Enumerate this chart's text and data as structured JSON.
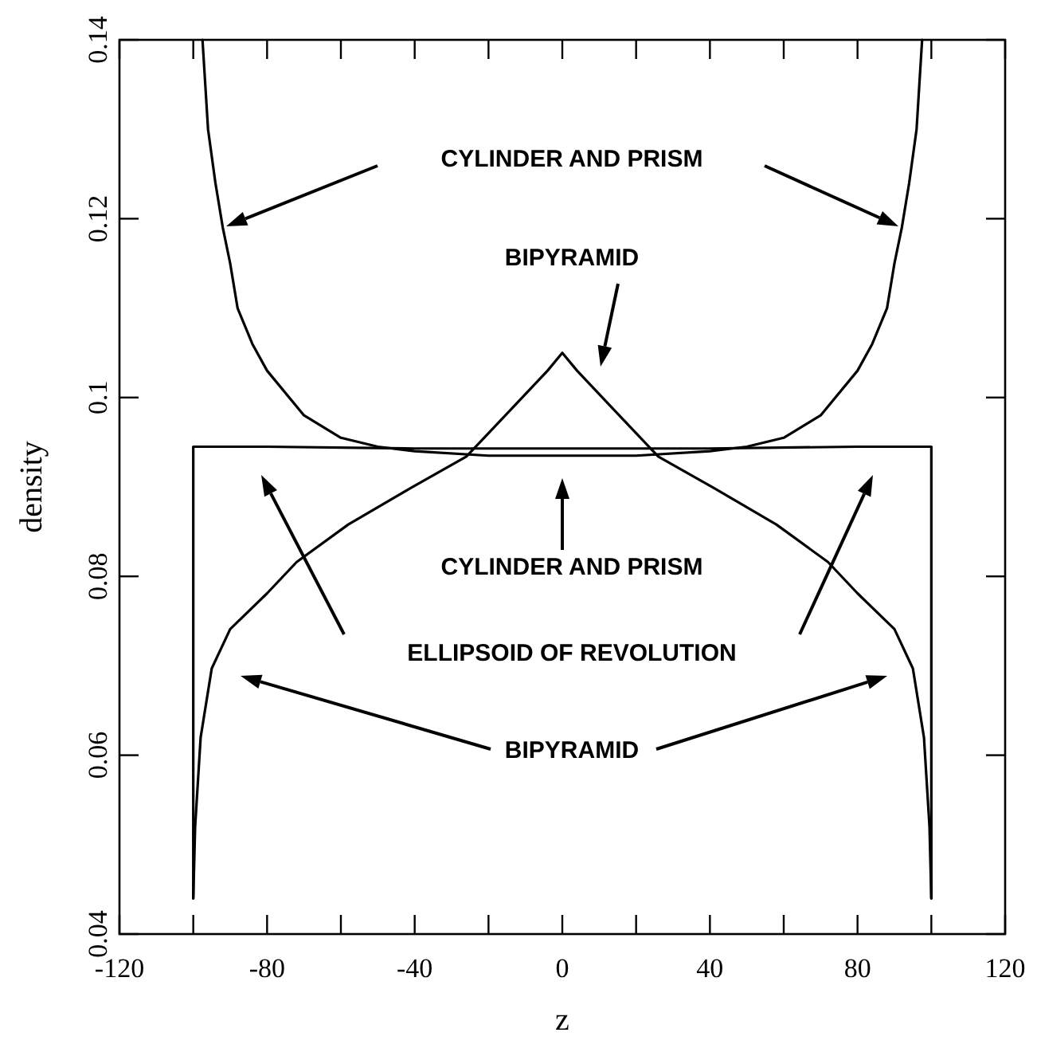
{
  "chart_data": {
    "type": "line",
    "xlabel": "z",
    "ylabel": "density",
    "xlim": [
      -120,
      120
    ],
    "ylim": [
      0.04,
      0.14
    ],
    "xticks": [
      -120,
      {
        "value": -100,
        "label": null
      },
      -80,
      {
        "value": -60,
        "label": null
      },
      -40,
      {
        "value": -20,
        "label": null
      },
      0,
      {
        "value": 20,
        "label": null
      },
      40,
      {
        "value": 60,
        "label": null
      },
      80,
      {
        "value": 100,
        "label": null
      },
      120
    ],
    "yticks": [
      0.04,
      0.06,
      0.08,
      0.1,
      0.12,
      0.14
    ],
    "grid": false,
    "series": [
      {
        "color": "#000000",
        "x": [
          -97.5,
          -96,
          -94,
          -92,
          -90,
          -88,
          -84,
          -80,
          -70,
          -60,
          -50,
          -40,
          -20,
          0,
          20,
          40,
          50,
          60,
          70,
          80,
          84,
          88,
          90,
          92,
          94,
          96,
          97.5
        ],
        "values": [
          0.14,
          0.13,
          0.124,
          0.119,
          0.115,
          0.11,
          0.106,
          0.103,
          0.098,
          0.0955,
          0.0945,
          0.094,
          0.0935,
          0.0935,
          0.0935,
          0.094,
          0.0945,
          0.0955,
          0.098,
          0.103,
          0.106,
          0.11,
          0.115,
          0.119,
          0.124,
          0.13,
          0.14
        ]
      },
      {
        "color": "#000000",
        "x": [
          -100,
          -99.5,
          -98,
          -95,
          -90,
          -80,
          -72,
          -58,
          -41,
          -26,
          -12,
          -4,
          0,
          4,
          12,
          26,
          41,
          58,
          72,
          80,
          90,
          95,
          98,
          99.5,
          100
        ],
        "values": [
          0.044,
          0.052,
          0.062,
          0.0697,
          0.0741,
          0.0781,
          0.0816,
          0.0858,
          0.0899,
          0.0934,
          0.0995,
          0.103,
          0.105,
          0.103,
          0.0995,
          0.0934,
          0.0899,
          0.0858,
          0.0816,
          0.0781,
          0.0741,
          0.0697,
          0.062,
          0.052,
          0.044
        ]
      },
      {
        "color": "#000000",
        "x": [
          -100,
          -100,
          -80,
          -40,
          0,
          40,
          80,
          100,
          100
        ],
        "values": [
          0.044,
          0.0945,
          0.0945,
          0.0943,
          0.0943,
          0.0943,
          0.0945,
          0.0945,
          0.044
        ]
      }
    ],
    "annotations": [
      "CYLINDER AND PRISM",
      "BIPYRAMID",
      "CYLINDER AND PRISM",
      "ELLIPSOID OF REVOLUTION",
      "BIPYRAMID"
    ]
  }
}
